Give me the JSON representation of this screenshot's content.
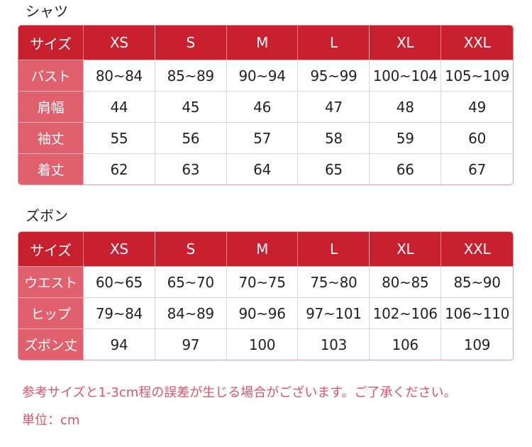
{
  "shirt": {
    "title": "シャツ",
    "headers": [
      "サイズ",
      "XS",
      "S",
      "M",
      "L",
      "XL",
      "XXL"
    ],
    "rows": [
      {
        "label": "バスト",
        "values": [
          "80~84",
          "85~89",
          "90~94",
          "95~99",
          "100~104",
          "105~109"
        ]
      },
      {
        "label": "肩幅",
        "values": [
          "44",
          "45",
          "46",
          "47",
          "48",
          "49"
        ]
      },
      {
        "label": "袖丈",
        "values": [
          "55",
          "56",
          "57",
          "58",
          "59",
          "60"
        ]
      },
      {
        "label": "着丈",
        "values": [
          "62",
          "63",
          "64",
          "65",
          "66",
          "67"
        ]
      }
    ]
  },
  "pants": {
    "title": "ズボン",
    "headers": [
      "サイズ",
      "XS",
      "S",
      "M",
      "L",
      "XL",
      "XXL"
    ],
    "rows": [
      {
        "label": "ウエスト",
        "values": [
          "60~65",
          "65~70",
          "70~75",
          "75~80",
          "80~85",
          "85~90"
        ]
      },
      {
        "label": "ヒップ",
        "values": [
          "79~84",
          "84~89",
          "90~96",
          "97~101",
          "102~106",
          "106~110"
        ]
      },
      {
        "label": "ズボン丈",
        "values": [
          "94",
          "97",
          "100",
          "103",
          "106",
          "109"
        ]
      }
    ]
  },
  "notes": {
    "disclaimer": "参考サイズと1-3cm程の誤差が生じる場合がございます。ご了承ください。",
    "unit": "単位：cm"
  },
  "colors": {
    "header": "#c8202f",
    "label_column": "#e0606e",
    "note_text": "#d9566a"
  }
}
